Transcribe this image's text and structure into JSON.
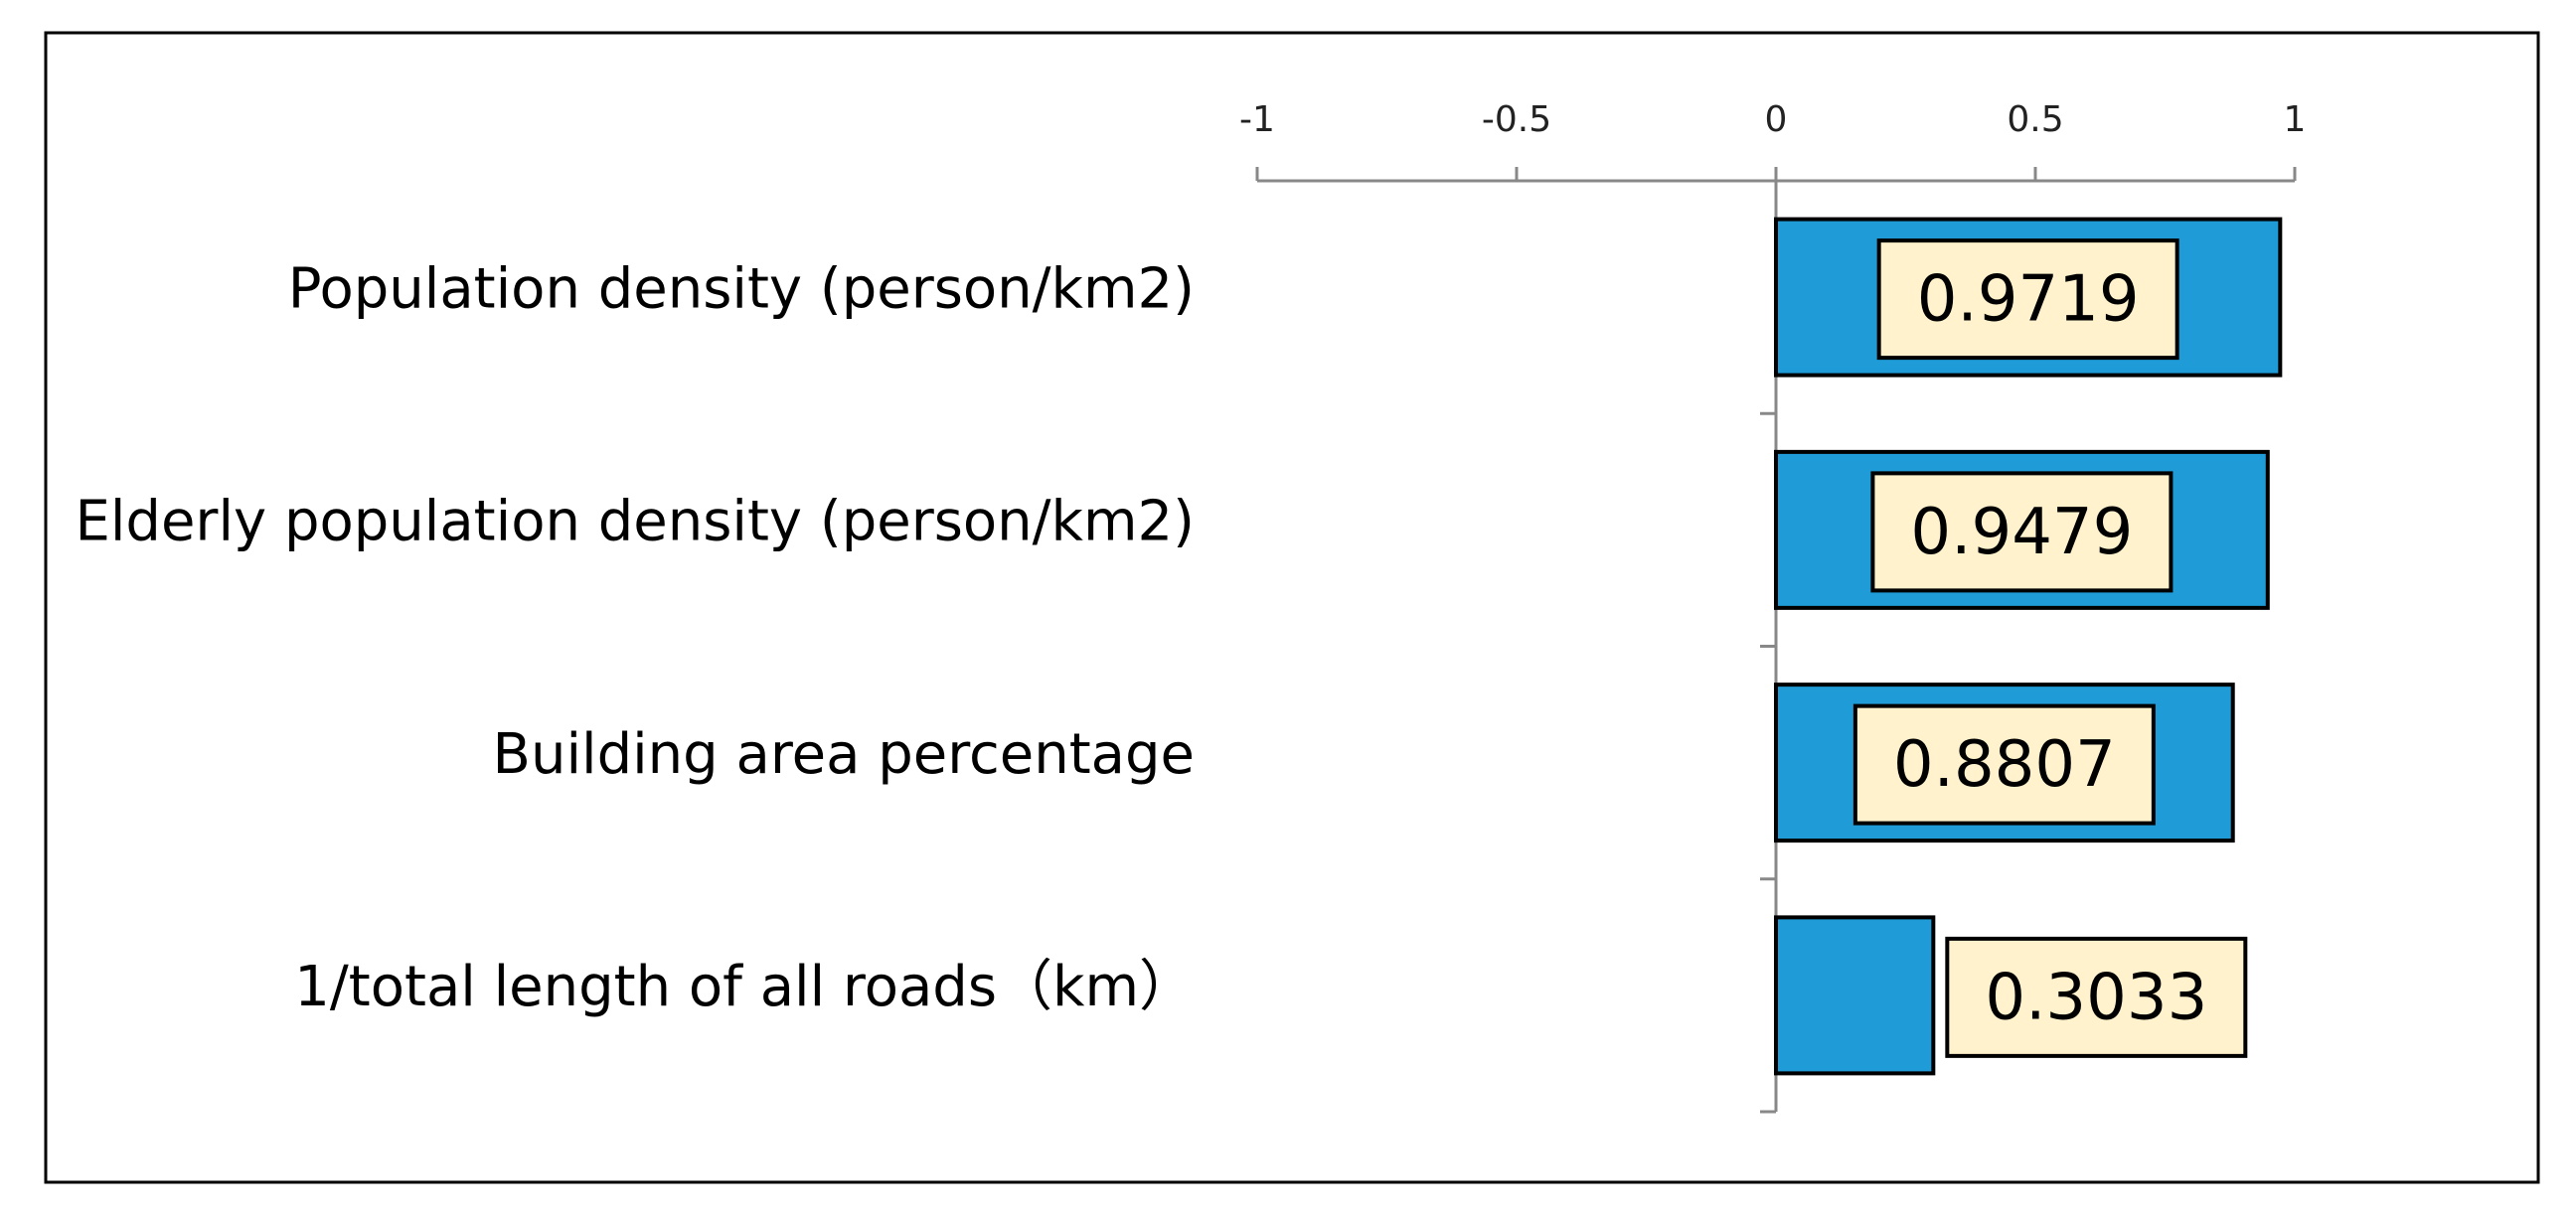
{
  "chart_data": {
    "type": "bar",
    "orientation": "horizontal",
    "categories": [
      "Population density (person/km2)",
      "Elderly population density (person/km2)",
      "Building area percentage",
      "1/total length of all roads（km）"
    ],
    "values": [
      0.9719,
      0.9479,
      0.8807,
      0.3033
    ],
    "color": "#1f9bd7",
    "xlim": [
      -1,
      1
    ],
    "xticks": [
      -1,
      -0.5,
      0,
      0.5,
      1
    ]
  }
}
